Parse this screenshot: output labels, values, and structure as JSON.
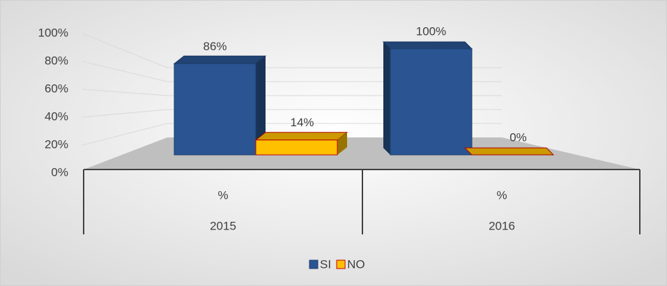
{
  "chart_data": {
    "type": "bar3d",
    "categories": [
      "%",
      "%"
    ],
    "category_groups": [
      "2015",
      "2016"
    ],
    "series": [
      {
        "name": "SI",
        "color": "#2a5592",
        "values": [
          86,
          100
        ],
        "value_labels": [
          "86%",
          "100%"
        ]
      },
      {
        "name": "NO",
        "color": "#ffc000",
        "values": [
          14,
          0
        ],
        "value_labels": [
          "14%",
          "0%"
        ]
      }
    ],
    "ylim": [
      0,
      100
    ],
    "yticks": [
      {
        "value": 0,
        "label": "0%"
      },
      {
        "value": 20,
        "label": "20%"
      },
      {
        "value": 40,
        "label": "40%"
      },
      {
        "value": 60,
        "label": "60%"
      },
      {
        "value": 80,
        "label": "80%"
      },
      {
        "value": 100,
        "label": "100%"
      }
    ],
    "grid": true,
    "legend": "bottom"
  }
}
